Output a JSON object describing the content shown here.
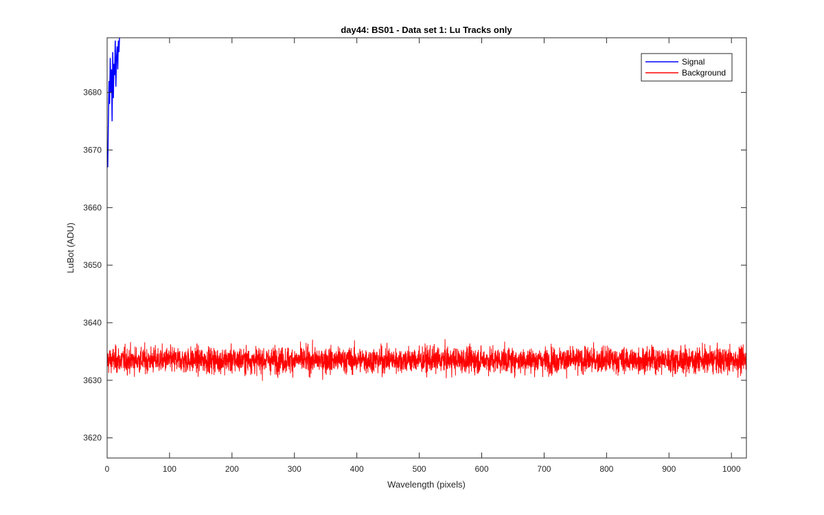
{
  "chart_data": {
    "type": "line",
    "title": "day44: BS01 - Data set 1: Lu Tracks only",
    "xlabel": "Wavelength (pixels)",
    "ylabel": "LuBot (ADU)",
    "xlim": [
      0,
      1024
    ],
    "ylim": [
      3616.5,
      3689.5
    ],
    "xticks": [
      0,
      100,
      200,
      300,
      400,
      500,
      600,
      700,
      800,
      900,
      1000
    ],
    "yticks": [
      3620,
      3630,
      3640,
      3650,
      3660,
      3670,
      3680
    ],
    "grid": false,
    "legend_position": "top-right",
    "series": [
      {
        "name": "Signal",
        "color": "#0000ff",
        "x": [
          0,
          1,
          2,
          3,
          4,
          5,
          6,
          7,
          8,
          9,
          10,
          11,
          12,
          13,
          14,
          15,
          16,
          17,
          18,
          19,
          20
        ],
        "y": [
          3670,
          3667,
          3675,
          3682,
          3678,
          3686,
          3680,
          3684,
          3675,
          3687,
          3679,
          3685,
          3683,
          3689,
          3681,
          3686,
          3688,
          3684,
          3689,
          3687,
          3690
        ]
      },
      {
        "name": "Background",
        "color": "#ff0000",
        "x_range": [
          0,
          1024
        ],
        "mean": 3633.5,
        "noise_range": [
          3627,
          3640
        ]
      }
    ]
  }
}
